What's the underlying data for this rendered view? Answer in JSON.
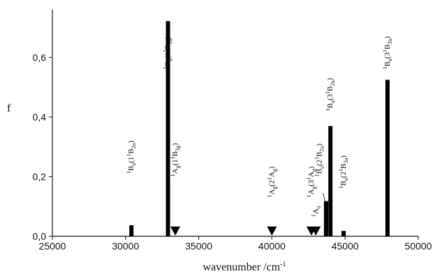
{
  "chart_data": {
    "type": "bar",
    "xlabel": "wavenumber /cm",
    "xlabel_sup": "-1",
    "ylabel": "f",
    "xlim": [
      25000,
      50000
    ],
    "ylim": [
      0,
      0.76
    ],
    "xticks": [
      {
        "value": 25000,
        "label": "25000"
      },
      {
        "value": 30000,
        "label": "30000"
      },
      {
        "value": 35000,
        "label": "35000"
      },
      {
        "value": 40000,
        "label": "40000"
      },
      {
        "value": 45000,
        "label": "45000"
      },
      {
        "value": 50000,
        "label": "50000"
      }
    ],
    "yticks": [
      {
        "value": 0.0,
        "label": "0,0"
      },
      {
        "value": 0.2,
        "label": "0,2"
      },
      {
        "value": 0.4,
        "label": "0,4"
      },
      {
        "value": 0.6,
        "label": "0,6"
      }
    ],
    "bars": [
      {
        "x": 30400,
        "y": 0.037,
        "label": [
          [
            "t",
            "1"
          ],
          [
            "n",
            "B"
          ],
          [
            "s",
            "u"
          ],
          [
            "n",
            "(1"
          ],
          [
            "t",
            "1"
          ],
          [
            "n",
            "B"
          ],
          [
            "s",
            "2u"
          ],
          [
            "n",
            ")"
          ]
        ],
        "label_y": 0.21
      },
      {
        "x": 32900,
        "y": 0.722,
        "label": [
          [
            "t",
            "1"
          ],
          [
            "n",
            "B"
          ],
          [
            "s",
            "u"
          ],
          [
            "n",
            "(1"
          ],
          [
            "t",
            "1"
          ],
          [
            "n",
            "B"
          ],
          [
            "s",
            "3u"
          ],
          [
            "n",
            ")"
          ]
        ],
        "label_y": 0.56
      },
      {
        "x": 43700,
        "y": 0.118,
        "label": null
      },
      {
        "x": 44000,
        "y": 0.37,
        "label": [
          [
            "t",
            "1"
          ],
          [
            "n",
            "B"
          ],
          [
            "s",
            "u"
          ],
          [
            "n",
            "(3"
          ],
          [
            "t",
            "1"
          ],
          [
            "n",
            "B"
          ],
          [
            "s",
            "2u"
          ],
          [
            "n",
            ")"
          ]
        ],
        "label_y": 0.42
      },
      {
        "x": 44900,
        "y": 0.018,
        "label": [
          [
            "t",
            "1"
          ],
          [
            "n",
            "B"
          ],
          [
            "s",
            "u"
          ],
          [
            "n",
            "(2"
          ],
          [
            "t",
            "1"
          ],
          [
            "n",
            "B"
          ],
          [
            "s",
            "3u"
          ],
          [
            "n",
            ")"
          ]
        ],
        "label_y": 0.16
      },
      {
        "x": 47900,
        "y": 0.525,
        "label": [
          [
            "t",
            "1"
          ],
          [
            "n",
            "B"
          ],
          [
            "s",
            "u"
          ],
          [
            "n",
            "(3"
          ],
          [
            "t",
            "1"
          ],
          [
            "n",
            "B"
          ],
          [
            "s",
            "3u"
          ],
          [
            "n",
            ")"
          ]
        ],
        "label_y": 0.56
      }
    ],
    "markers": [
      {
        "x": 33400,
        "label": [
          [
            "t",
            "1"
          ],
          [
            "n",
            "A"
          ],
          [
            "s",
            "g"
          ],
          [
            "n",
            "(1"
          ],
          [
            "t",
            "1"
          ],
          [
            "n",
            "B"
          ],
          [
            "s",
            "3g"
          ],
          [
            "n",
            ")"
          ]
        ],
        "label_y": 0.2
      },
      {
        "x": 40000,
        "label": [
          [
            "t",
            "1"
          ],
          [
            "n",
            "A"
          ],
          [
            "s",
            "g"
          ],
          [
            "n",
            "(2"
          ],
          [
            "t",
            "1"
          ],
          [
            "n",
            "A"
          ],
          [
            "s",
            "g"
          ],
          [
            "n",
            ")"
          ]
        ],
        "label_y": 0.13
      },
      {
        "x": 42700,
        "label": [
          [
            "t",
            "1"
          ],
          [
            "n",
            "A"
          ],
          [
            "s",
            "g"
          ],
          [
            "n",
            "(3"
          ],
          [
            "t",
            "1"
          ],
          [
            "n",
            "A"
          ],
          [
            "s",
            "g"
          ],
          [
            "n",
            ")"
          ]
        ],
        "label_y": 0.13
      },
      {
        "x": 43000,
        "label": [
          [
            "t",
            "1"
          ],
          [
            "n",
            "A"
          ],
          [
            "s",
            "u"
          ]
        ],
        "label_y": 0.065
      }
    ],
    "leader_label": {
      "text": [
        [
          "t",
          "1"
        ],
        [
          "n",
          "B"
        ],
        [
          "s",
          "u"
        ],
        [
          "n",
          "(2"
        ],
        [
          "t",
          "1"
        ],
        [
          "n",
          "B"
        ],
        [
          "s",
          "2u"
        ],
        [
          "n",
          ")"
        ]
      ],
      "x": 43400,
      "label_y": 0.2,
      "to_x": 43700,
      "to_y": 0.118
    }
  }
}
